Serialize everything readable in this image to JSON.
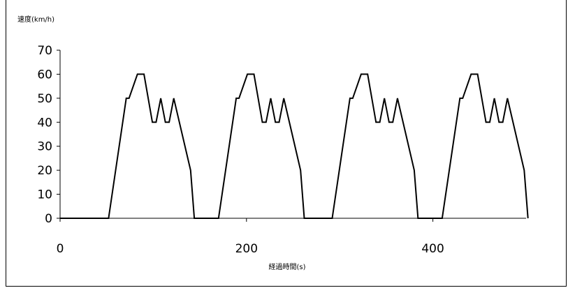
{
  "chart_data": {
    "type": "line",
    "title": "",
    "ylabel": "速度(km/h)",
    "xlabel": "経過時間(s)",
    "xlim": [
      0,
      500
    ],
    "ylim": [
      0,
      70
    ],
    "xticks": [
      0,
      200,
      400
    ],
    "yticks": [
      0,
      10,
      20,
      30,
      40,
      50,
      60,
      70
    ],
    "x_tick_labels": [
      "0",
      "200",
      "400"
    ],
    "y_tick_labels": [
      "0",
      "10",
      "20",
      "30",
      "40",
      "50",
      "60",
      "70"
    ],
    "grid": false,
    "legend": "none",
    "series": [
      {
        "color": "#000000",
        "x": [
          0,
          52,
          71,
          74,
          83,
          90,
          99,
          103,
          108,
          113,
          117,
          122,
          140,
          144,
          170,
          189,
          192,
          201,
          208,
          217,
          221,
          226,
          231,
          235,
          240,
          258,
          262,
          292,
          311,
          314,
          323,
          330,
          339,
          343,
          348,
          353,
          357,
          362,
          380,
          384,
          410,
          429,
          432,
          441,
          448,
          457,
          461,
          466,
          471,
          475,
          480,
          498,
          502
        ],
        "y": [
          0,
          0,
          50,
          50,
          60,
          60,
          40,
          40,
          50,
          40,
          40,
          50,
          20,
          0,
          0,
          50,
          50,
          60,
          60,
          40,
          40,
          50,
          40,
          40,
          50,
          20,
          0,
          0,
          50,
          50,
          60,
          60,
          40,
          40,
          50,
          40,
          40,
          50,
          20,
          0,
          0,
          50,
          50,
          60,
          60,
          40,
          40,
          50,
          40,
          40,
          50,
          20,
          0
        ]
      }
    ]
  }
}
